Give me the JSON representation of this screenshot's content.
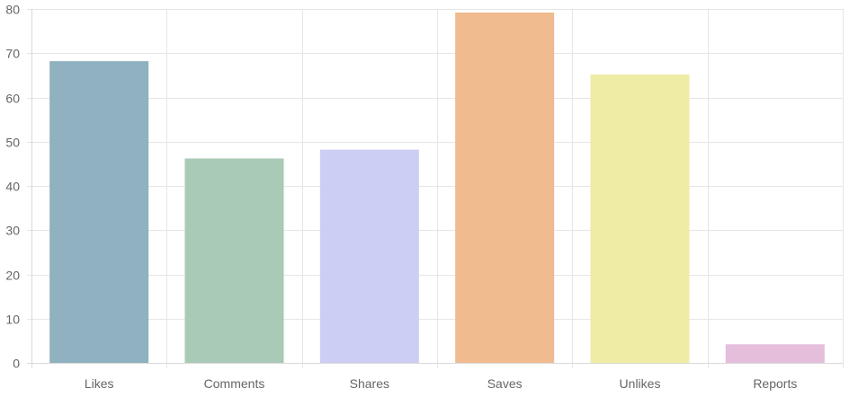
{
  "chart_data": {
    "type": "bar",
    "title": "",
    "xlabel": "",
    "ylabel": "",
    "categories": [
      "Likes",
      "Comments",
      "Shares",
      "Saves",
      "Unlikes",
      "Reports"
    ],
    "values": [
      68,
      46,
      48,
      79,
      65,
      4
    ],
    "colors": [
      "#8fb1c0",
      "#a9cab6",
      "#cccff3",
      "#efbb8f",
      "#efeca5",
      "#e4bedb"
    ],
    "ylim": [
      0,
      80
    ],
    "yticks": [
      0,
      10,
      20,
      30,
      40,
      50,
      60,
      70,
      80
    ],
    "grid": true,
    "legend": "none"
  }
}
